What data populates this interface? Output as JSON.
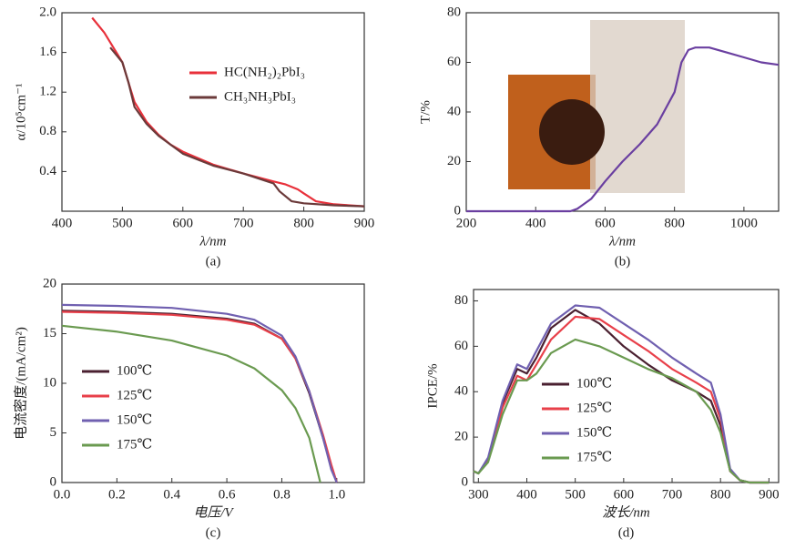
{
  "chart_data": [
    {
      "type": "line",
      "caption": "(a)",
      "x_label": "λ/nm",
      "y_label": "α/10⁵cm⁻¹",
      "xlim": [
        400,
        900
      ],
      "xticks": [
        400,
        500,
        600,
        700,
        800,
        900
      ],
      "ylim": [
        0,
        2
      ],
      "yticks": [
        0.4,
        0.8,
        1.2,
        1.6,
        {
          "value": 2,
          "label": "2.0"
        }
      ],
      "legend": "upper right",
      "series": [
        {
          "name": "HC(NH₂)₂PbI₃",
          "color": "#e8303a",
          "x": [
            450,
            470,
            490,
            500,
            510,
            520,
            540,
            560,
            580,
            600,
            650,
            700,
            750,
            770,
            790,
            800,
            820,
            850,
            900
          ],
          "values": [
            1.95,
            1.8,
            1.6,
            1.5,
            1.3,
            1.1,
            0.9,
            0.77,
            0.67,
            0.6,
            0.47,
            0.38,
            0.3,
            0.27,
            0.22,
            0.18,
            0.1,
            0.07,
            0.05
          ]
        },
        {
          "name": "CH₃NH₃PbI₃",
          "color": "#6b3a3a",
          "x": [
            480,
            500,
            510,
            520,
            540,
            560,
            600,
            650,
            700,
            740,
            750,
            760,
            780,
            800,
            850,
            900
          ],
          "values": [
            1.65,
            1.5,
            1.3,
            1.05,
            0.88,
            0.76,
            0.58,
            0.46,
            0.38,
            0.3,
            0.28,
            0.2,
            0.1,
            0.08,
            0.06,
            0.05
          ]
        }
      ]
    },
    {
      "type": "line",
      "caption": "(b)",
      "x_label": "λ/nm",
      "y_label": "T/%",
      "xlim": [
        200,
        1100
      ],
      "xticks": [
        200,
        400,
        600,
        800,
        1000
      ],
      "ylim": [
        0,
        80
      ],
      "yticks": [
        0,
        20,
        40,
        60,
        80
      ],
      "series": [
        {
          "color": "#6a3fa0",
          "x": [
            200,
            500,
            520,
            560,
            600,
            650,
            700,
            750,
            800,
            820,
            840,
            860,
            900,
            950,
            1000,
            1050,
            1100
          ],
          "values": [
            0,
            0,
            1,
            5,
            12,
            20,
            27,
            35,
            48,
            60,
            65,
            66,
            66,
            64,
            62,
            60,
            59
          ]
        }
      ]
    },
    {
      "type": "line",
      "caption": "(c)",
      "x_label": "电压/V",
      "y_label": "电流密度/(mA/cm²)",
      "xlim": [
        0,
        1.1
      ],
      "xticks": [
        {
          "value": 0,
          "label": "0.0"
        },
        0.2,
        0.4,
        0.6,
        0.8,
        {
          "value": 1,
          "label": "1.0"
        }
      ],
      "ylim": [
        0,
        20
      ],
      "yticks": [
        0,
        5,
        10,
        15,
        20
      ],
      "legend": "lower left",
      "series": [
        {
          "name": "100℃",
          "color": "#4a2030",
          "x": [
            0,
            0.2,
            0.4,
            0.6,
            0.7,
            0.8,
            0.85,
            0.9,
            0.95,
            0.98,
            1.0
          ],
          "values": [
            17.3,
            17.2,
            17.0,
            16.5,
            16.0,
            14.5,
            12.5,
            9,
            4.5,
            1.5,
            0
          ]
        },
        {
          "name": "125℃",
          "color": "#e8404a",
          "x": [
            0,
            0.2,
            0.4,
            0.6,
            0.7,
            0.8,
            0.85,
            0.9,
            0.95,
            0.98,
            1.0
          ],
          "values": [
            17.2,
            17.1,
            16.9,
            16.4,
            15.9,
            14.5,
            12.5,
            9.2,
            4.8,
            1.8,
            0
          ]
        },
        {
          "name": "150℃",
          "color": "#7060b0",
          "x": [
            0,
            0.2,
            0.4,
            0.6,
            0.7,
            0.8,
            0.85,
            0.9,
            0.95,
            0.98,
            1.0
          ],
          "values": [
            17.9,
            17.8,
            17.6,
            17.0,
            16.4,
            14.8,
            12.7,
            9.2,
            4.5,
            1.3,
            0
          ]
        },
        {
          "name": "175℃",
          "color": "#6a9a50",
          "x": [
            0,
            0.2,
            0.4,
            0.6,
            0.7,
            0.8,
            0.85,
            0.9,
            0.94
          ],
          "values": [
            15.8,
            15.2,
            14.3,
            12.8,
            11.5,
            9.3,
            7.5,
            4.5,
            0
          ]
        }
      ]
    },
    {
      "type": "line",
      "caption": "(d)",
      "x_label": "波长/nm",
      "y_label": "IPCE/%",
      "xlim": [
        290,
        920
      ],
      "xticks": [
        300,
        400,
        500,
        600,
        700,
        800,
        900
      ],
      "ylim": [
        0,
        85
      ],
      "yticks": [
        0,
        20,
        40,
        60,
        80
      ],
      "legend": "lower center",
      "series": [
        {
          "name": "100℃",
          "color": "#4a2030",
          "x": [
            290,
            300,
            320,
            350,
            380,
            400,
            420,
            450,
            500,
            550,
            600,
            650,
            700,
            750,
            780,
            800,
            820,
            840,
            860,
            900
          ],
          "values": [
            5,
            4,
            10,
            35,
            50,
            48,
            55,
            68,
            76,
            70,
            60,
            52,
            45,
            40,
            36,
            25,
            5,
            1,
            0,
            0
          ]
        },
        {
          "name": "125℃",
          "color": "#e8404a",
          "x": [
            290,
            300,
            320,
            350,
            380,
            400,
            420,
            450,
            500,
            550,
            600,
            650,
            700,
            750,
            780,
            800,
            820,
            840,
            860,
            900
          ],
          "values": [
            5,
            4,
            10,
            33,
            47,
            45,
            52,
            63,
            73,
            72,
            65,
            58,
            50,
            44,
            40,
            28,
            5,
            1,
            0,
            0
          ]
        },
        {
          "name": "150℃",
          "color": "#7060b0",
          "x": [
            290,
            300,
            320,
            350,
            380,
            400,
            420,
            450,
            500,
            550,
            600,
            650,
            700,
            750,
            780,
            800,
            820,
            840,
            860,
            900
          ],
          "values": [
            5,
            4,
            11,
            36,
            52,
            50,
            58,
            70,
            78,
            77,
            70,
            63,
            55,
            48,
            44,
            30,
            6,
            1,
            0,
            0
          ]
        },
        {
          "name": "175℃",
          "color": "#6a9a50",
          "x": [
            290,
            300,
            320,
            350,
            380,
            400,
            420,
            450,
            500,
            550,
            600,
            650,
            700,
            750,
            780,
            800,
            820,
            840,
            860,
            900
          ],
          "values": [
            5,
            4,
            9,
            30,
            45,
            45,
            48,
            57,
            63,
            60,
            55,
            50,
            46,
            40,
            32,
            22,
            5,
            1,
            0,
            0
          ]
        }
      ]
    }
  ]
}
